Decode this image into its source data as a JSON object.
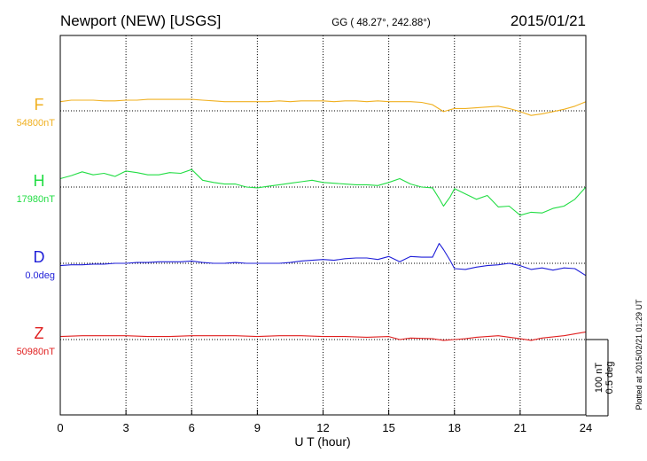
{
  "header": {
    "station": "Newport (NEW)  [USGS]",
    "coords": "GG ( 48.27°, 242.88°)",
    "date": "2015/01/21"
  },
  "footer": {
    "plotted": "Plotted at 2015/02/21 01:29 UT"
  },
  "scale": {
    "nt": "100 nT",
    "deg": "0.5 deg"
  },
  "chart_data": {
    "type": "line",
    "xlabel": "U T (hour)",
    "xlim": [
      0,
      24
    ],
    "xticks": [
      0,
      3,
      6,
      9,
      12,
      15,
      18,
      21,
      24
    ],
    "grid": true,
    "series": [
      {
        "name": "F",
        "baseline_label": "54800nT",
        "color": "#f0b020",
        "unit": "nT",
        "baseline": 54800,
        "x": [
          0,
          0.5,
          1,
          1.5,
          2,
          2.5,
          3,
          3.5,
          4,
          4.5,
          5,
          5.5,
          6,
          6.5,
          7,
          7.5,
          8,
          8.5,
          9,
          9.5,
          10,
          10.5,
          11,
          11.5,
          12,
          12.5,
          13,
          13.5,
          14,
          14.5,
          15,
          15.5,
          16,
          16.5,
          17,
          17.5,
          18,
          18.5,
          19,
          19.5,
          20,
          20.5,
          21,
          21.5,
          22,
          22.5,
          23,
          23.5,
          24
        ],
        "values": [
          54812,
          54814,
          54814,
          54814,
          54813,
          54813,
          54814,
          54814,
          54815,
          54815,
          54815,
          54815,
          54815,
          54814,
          54813,
          54812,
          54812,
          54812,
          54812,
          54812,
          54813,
          54812,
          54813,
          54813,
          54813,
          54812,
          54813,
          54813,
          54812,
          54813,
          54812,
          54812,
          54812,
          54811,
          54808,
          54799,
          54803,
          54803,
          54804,
          54805,
          54806,
          54803,
          54799,
          54794,
          54796,
          54799,
          54802,
          54806,
          54812
        ]
      },
      {
        "name": "H",
        "baseline_label": "17980nT",
        "color": "#22dd44",
        "unit": "nT",
        "baseline": 17980,
        "x": [
          0,
          0.5,
          1,
          1.5,
          2,
          2.5,
          3,
          3.5,
          4,
          4.5,
          5,
          5.5,
          6,
          6.5,
          7,
          7.5,
          8,
          8.5,
          9,
          9.5,
          10,
          10.5,
          11,
          11.5,
          12,
          12.5,
          13,
          13.5,
          14,
          14.5,
          15,
          15.5,
          16,
          16.5,
          17,
          17.3,
          17.5,
          17.8,
          18,
          18.5,
          19,
          19.5,
          20,
          20.5,
          21,
          21.5,
          22,
          22.5,
          23,
          23.5,
          24
        ],
        "values": [
          17991,
          17995,
          18000,
          17996,
          17998,
          17994,
          18001,
          17999,
          17996,
          17996,
          17999,
          17998,
          18003,
          17989,
          17986,
          17984,
          17984,
          17980,
          17979,
          17981,
          17983,
          17985,
          17987,
          17989,
          17986,
          17985,
          17984,
          17983,
          17983,
          17982,
          17986,
          17991,
          17984,
          17980,
          17979,
          17965,
          17955,
          17967,
          17978,
          17971,
          17964,
          17969,
          17954,
          17955,
          17943,
          17947,
          17946,
          17952,
          17955,
          17964,
          17980
        ]
      },
      {
        "name": "D",
        "baseline_label": "0.0deg",
        "color": "#1f1fd8",
        "unit": "deg",
        "baseline": 0.0,
        "x": [
          0,
          0.5,
          1,
          1.5,
          2,
          2.5,
          3,
          3.5,
          4,
          4.5,
          5,
          5.5,
          6,
          6.5,
          7,
          7.5,
          8,
          8.5,
          9,
          9.5,
          10,
          10.5,
          11,
          11.5,
          12,
          12.5,
          13,
          13.5,
          14,
          14.5,
          15,
          15.5,
          16,
          16.5,
          17,
          17.3,
          17.5,
          17.8,
          18,
          18.5,
          19,
          19.5,
          20,
          20.5,
          21,
          21.5,
          22,
          22.5,
          23,
          23.5,
          24
        ],
        "values": [
          -0.015,
          -0.01,
          -0.01,
          -0.005,
          -0.005,
          0.0,
          0.0,
          0.005,
          0.005,
          0.01,
          0.01,
          0.01,
          0.015,
          0.005,
          0.0,
          0.0,
          0.005,
          0.0,
          0.0,
          0.0,
          0.0,
          0.005,
          0.015,
          0.02,
          0.025,
          0.02,
          0.03,
          0.035,
          0.035,
          0.025,
          0.045,
          0.01,
          0.045,
          0.04,
          0.04,
          0.13,
          0.09,
          0.02,
          -0.035,
          -0.04,
          -0.025,
          -0.015,
          -0.01,
          0.0,
          -0.015,
          -0.04,
          -0.03,
          -0.045,
          -0.03,
          -0.035,
          -0.08
        ]
      },
      {
        "name": "Z",
        "baseline_label": "50980nT",
        "color": "#e02020",
        "unit": "nT",
        "baseline": 50980,
        "x": [
          0,
          1,
          2,
          3,
          4,
          5,
          6,
          7,
          8,
          9,
          10,
          11,
          12,
          13,
          14,
          15,
          15.5,
          16,
          17,
          17.5,
          18,
          18.5,
          19,
          20,
          21,
          21.5,
          22,
          23,
          24
        ],
        "values": [
          50984,
          50985,
          50985,
          50985,
          50984,
          50984,
          50985,
          50985,
          50985,
          50984,
          50985,
          50985,
          50984,
          50984,
          50983,
          50984,
          50980,
          50982,
          50981,
          50979,
          50980,
          50981,
          50983,
          50985,
          50981,
          50979,
          50982,
          50985,
          50990
        ]
      }
    ]
  }
}
